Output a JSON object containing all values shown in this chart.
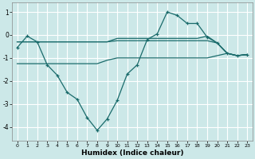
{
  "xlabel": "Humidex (Indice chaleur)",
  "background_color": "#cce8e8",
  "grid_color": "#ffffff",
  "line_color": "#1a6b6b",
  "xlim": [
    -0.5,
    23.5
  ],
  "ylim": [
    -4.6,
    1.4
  ],
  "yticks": [
    -4,
    -3,
    -2,
    -1,
    0,
    1
  ],
  "xticks": [
    0,
    1,
    2,
    3,
    4,
    5,
    6,
    7,
    8,
    9,
    10,
    11,
    12,
    13,
    14,
    15,
    16,
    17,
    18,
    19,
    20,
    21,
    22,
    23
  ],
  "main_x": [
    0,
    1,
    2,
    3,
    4,
    5,
    6,
    7,
    8,
    9,
    10,
    11,
    12,
    13,
    14,
    15,
    16,
    17,
    18,
    19,
    20,
    21,
    22,
    23
  ],
  "main_y": [
    -0.55,
    -0.05,
    -0.3,
    -1.3,
    -1.75,
    -2.5,
    -2.8,
    -3.6,
    -4.15,
    -3.65,
    -2.85,
    -1.7,
    -1.3,
    -0.2,
    0.05,
    1.0,
    0.85,
    0.5,
    0.5,
    -0.1,
    -0.35,
    -0.8,
    -0.9,
    -0.85
  ],
  "upper_line1_x": [
    0,
    1,
    2,
    3,
    4,
    5,
    6,
    7,
    8,
    9,
    10,
    11,
    12,
    13,
    14,
    15,
    16,
    17,
    18,
    19,
    20,
    21,
    22,
    23
  ],
  "upper_line1_y": [
    -0.3,
    -0.3,
    -0.3,
    -0.3,
    -0.3,
    -0.3,
    -0.3,
    -0.3,
    -0.3,
    -0.3,
    -0.25,
    -0.25,
    -0.25,
    -0.25,
    -0.25,
    -0.25,
    -0.25,
    -0.25,
    -0.25,
    -0.25,
    -0.35,
    -0.8,
    -0.9,
    -0.85
  ],
  "upper_line2_x": [
    0,
    1,
    2,
    3,
    4,
    5,
    6,
    7,
    8,
    9,
    10,
    11,
    12,
    13,
    14,
    15,
    16,
    17,
    18,
    19,
    20,
    21,
    22,
    23
  ],
  "upper_line2_y": [
    -0.3,
    -0.3,
    -0.3,
    -0.3,
    -0.3,
    -0.3,
    -0.3,
    -0.3,
    -0.3,
    -0.3,
    -0.15,
    -0.15,
    -0.15,
    -0.15,
    -0.15,
    -0.15,
    -0.15,
    -0.15,
    -0.15,
    -0.05,
    -0.35,
    -0.8,
    -0.9,
    -0.85
  ],
  "lower_line_x": [
    0,
    1,
    2,
    3,
    4,
    5,
    6,
    7,
    8,
    9,
    10,
    11,
    12,
    13,
    14,
    15,
    16,
    17,
    18,
    19,
    20,
    21,
    22,
    23
  ],
  "lower_line_y": [
    -1.25,
    -1.25,
    -1.25,
    -1.25,
    -1.25,
    -1.25,
    -1.25,
    -1.25,
    -1.25,
    -1.1,
    -1.0,
    -1.0,
    -1.0,
    -1.0,
    -1.0,
    -1.0,
    -1.0,
    -1.0,
    -1.0,
    -1.0,
    -0.9,
    -0.8,
    -0.9,
    -0.85
  ]
}
